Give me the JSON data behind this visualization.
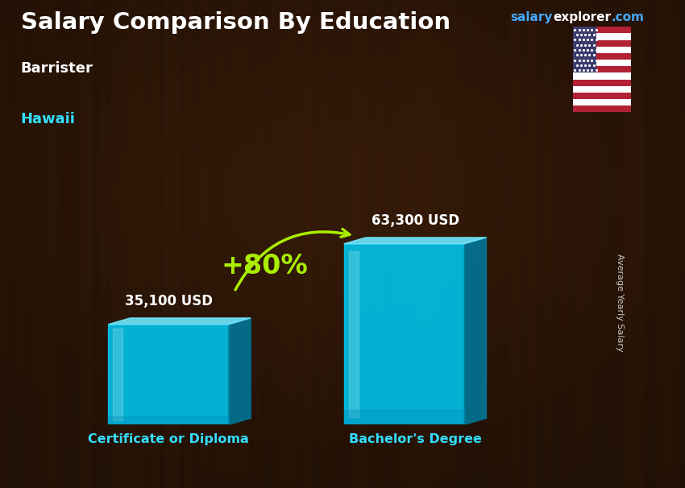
{
  "title": "Salary Comparison By Education",
  "subtitle1": "Barrister",
  "subtitle2": "Hawaii",
  "website_salary": "salary",
  "website_explorer": "explorer",
  "website_com": ".com",
  "categories": [
    "Certificate or Diploma",
    "Bachelor's Degree"
  ],
  "values": [
    35100,
    63300
  ],
  "value_labels": [
    "35,100 USD",
    "63,300 USD"
  ],
  "pct_change": "+80%",
  "bar_color_main": "#00C8F0",
  "bar_color_light": "#70E8FF",
  "bar_color_dark": "#0088BB",
  "bar_color_side": "#007799",
  "background_color": "#1a0d05",
  "title_color": "#FFFFFF",
  "subtitle1_color": "#FFFFFF",
  "subtitle2_color": "#33DDFF",
  "category_color": "#33DDFF",
  "value_color": "#FFFFFF",
  "pct_color": "#AAEE00",
  "arrow_color": "#AAEE00",
  "ylabel": "Average Yearly Salary",
  "ylabel_color": "#CCCCCC",
  "web_color1": "#44AAFF",
  "web_color2": "#FFFFFF",
  "figsize": [
    8.5,
    6.06
  ],
  "dpi": 100
}
